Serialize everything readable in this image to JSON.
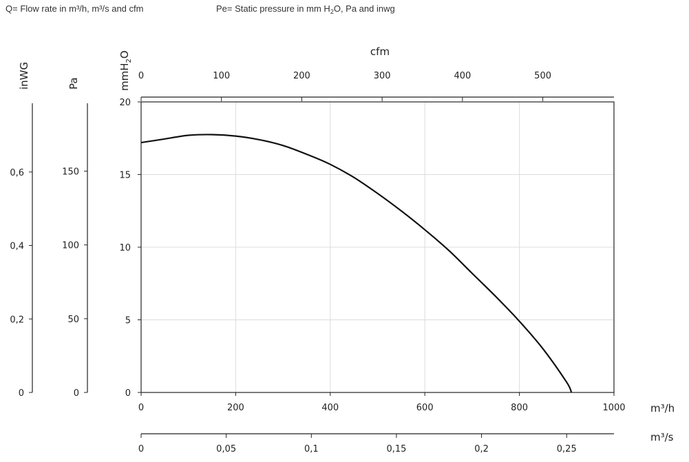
{
  "legend": {
    "flow_note": "Q= Flow rate in m³/h, m³/s and cfm",
    "pressure_note_prefix": "Pe= Static pressure in mm H",
    "pressure_note_sub": "2",
    "pressure_note_suffix": "O, Pa and inwg"
  },
  "chart_data": {
    "type": "line",
    "title": "",
    "grid": true,
    "axes": {
      "x_primary": {
        "label": "m³/h",
        "range": [
          0,
          1000
        ],
        "ticks": [
          "0",
          "200",
          "400",
          "600",
          "800",
          "1000"
        ]
      },
      "x_top": {
        "label": "cfm",
        "range": [
          0,
          588.6
        ],
        "ticks": [
          "0",
          "100",
          "200",
          "300",
          "400",
          "500"
        ]
      },
      "x_bottom2": {
        "label": "m³/s",
        "range": [
          0,
          0.2778
        ],
        "ticks": [
          "0",
          "0,05",
          "0,1",
          "0,15",
          "0,2",
          "0,25"
        ]
      },
      "y_primary": {
        "label": "mmH",
        "label_sub": "2",
        "label_tail": "O",
        "range": [
          0,
          20
        ],
        "ticks": [
          "0",
          "5",
          "10",
          "15",
          "20"
        ]
      },
      "y_pa": {
        "label": "Pa",
        "range": [
          0,
          196
        ],
        "ticks": [
          "0",
          "50",
          "100",
          "150"
        ]
      },
      "y_inwg": {
        "label": "inWG",
        "range": [
          0,
          0.787
        ],
        "ticks": [
          "0",
          "0,2",
          "0,4",
          "0,6"
        ]
      }
    },
    "series": [
      {
        "x": [
          0,
          50,
          100,
          150,
          200,
          250,
          300,
          350,
          400,
          450,
          500,
          550,
          600,
          650,
          700,
          750,
          800,
          850,
          900,
          910
        ],
        "y": [
          17.2,
          17.45,
          17.7,
          17.75,
          17.65,
          17.4,
          17.0,
          16.4,
          15.7,
          14.8,
          13.7,
          12.5,
          11.2,
          9.8,
          8.2,
          6.6,
          4.9,
          3.0,
          0.7,
          0.0
        ]
      }
    ]
  }
}
